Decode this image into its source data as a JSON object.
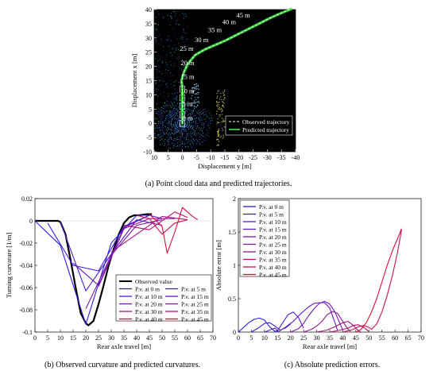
{
  "figure": {
    "caption_a": "(a) Point cloud data and predicted trajectories.",
    "caption_b": "(b) Observed curvature and predicted curvatures.",
    "caption_c": "(c) Absolute prediction errors."
  },
  "colors": {
    "observed": "#000000",
    "observed_traj": "#ffffff",
    "predicted_traj": "#36d23a",
    "map_bg": "#000000",
    "pv": [
      "#2a1ee0",
      "#3a1ed6",
      "#4e1ccb",
      "#6418be",
      "#7a16ad",
      "#8e149a",
      "#a21284",
      "#b5106c",
      "#c80e52",
      "#d90c3a"
    ]
  },
  "chart_data": [
    {
      "id": "a",
      "type": "scatter",
      "description_role": "point-cloud map with trajectories",
      "xlabel": "Displacement y [m]",
      "ylabel": "Displacement x [m]",
      "xlim": [
        10,
        -40
      ],
      "ylim": [
        -10,
        40
      ],
      "xticks": [
        10,
        5,
        0,
        -5,
        -10,
        -15,
        -20,
        -25,
        -30,
        -35,
        -40
      ],
      "yticks": [
        -10,
        -5,
        0,
        5,
        10,
        15,
        20,
        25,
        30,
        35,
        40
      ],
      "grid": false,
      "legend_position": "bottom-right",
      "series": [
        {
          "name": "Observed trajectory",
          "style": "dashed",
          "points": [
            [
              0,
              0
            ],
            [
              0,
              3
            ],
            [
              0,
              6
            ],
            [
              0,
              9
            ],
            [
              0,
              12
            ],
            [
              0.3,
              15
            ],
            [
              -0.5,
              18
            ],
            [
              -2,
              21
            ],
            [
              -4.5,
              24
            ],
            [
              -8,
              26
            ],
            [
              -11,
              27.3
            ],
            [
              -15,
              29
            ],
            [
              -19,
              31
            ],
            [
              -23,
              33
            ],
            [
              -27,
              35
            ],
            [
              -31,
              37
            ],
            [
              -35,
              38.8
            ],
            [
              -40,
              41
            ]
          ]
        },
        {
          "name": "Predicted trajectory",
          "style": "solid",
          "points": [
            [
              0,
              0
            ],
            [
              0,
              3
            ],
            [
              0,
              6
            ],
            [
              0,
              9
            ],
            [
              0,
              12
            ],
            [
              0.3,
              15
            ],
            [
              -0.5,
              18
            ],
            [
              -2,
              21
            ],
            [
              -4.5,
              24
            ],
            [
              -8,
              26
            ],
            [
              -11,
              27.3
            ],
            [
              -15,
              29
            ],
            [
              -19,
              31
            ],
            [
              -23,
              33
            ],
            [
              -27,
              35
            ],
            [
              -31,
              37
            ],
            [
              -35,
              38.8
            ],
            [
              -38.5,
              40.2
            ]
          ]
        }
      ],
      "annotations": [
        {
          "text": "0 m",
          "y": 1,
          "x": -1.8
        },
        {
          "text": "5 m",
          "y": 6,
          "x": -1.8
        },
        {
          "text": "10 m",
          "y": 10.5,
          "x": -1.8
        },
        {
          "text": "15 m",
          "y": 15.5,
          "x": -1.8
        },
        {
          "text": "20 m",
          "y": 20.5,
          "x": -1.8
        },
        {
          "text": "25 m",
          "y": 25.5,
          "x": -1.5
        },
        {
          "text": "30 m",
          "y": 28.5,
          "x": -6.8
        },
        {
          "text": "35 m",
          "y": 32,
          "x": -11.5
        },
        {
          "text": "40 m",
          "y": 34.8,
          "x": -16.5
        },
        {
          "text": "45 m",
          "y": 37.2,
          "x": -21.5
        }
      ]
    },
    {
      "id": "b",
      "type": "line",
      "xlabel": "Rear axle travel [m]",
      "ylabel": "Turning curvature [1/m]",
      "xlim": [
        0,
        70
      ],
      "ylim": [
        -0.1,
        0.02
      ],
      "xticks": [
        0,
        5,
        10,
        15,
        20,
        25,
        30,
        35,
        40,
        45,
        50,
        55,
        60,
        65,
        70
      ],
      "yticks": [
        -0.1,
        -0.08,
        -0.06,
        -0.04,
        -0.02,
        0,
        0.02
      ],
      "grid": false,
      "legend_position": "bottom-right",
      "series": [
        {
          "name": "Observed value",
          "points": [
            [
              0,
              0
            ],
            [
              5,
              0
            ],
            [
              9,
              0
            ],
            [
              10,
              -0.001
            ],
            [
              12,
              -0.012
            ],
            [
              14,
              -0.035
            ],
            [
              16,
              -0.06
            ],
            [
              18,
              -0.083
            ],
            [
              20,
              -0.092
            ],
            [
              21,
              -0.094
            ],
            [
              23,
              -0.09
            ],
            [
              25,
              -0.075
            ],
            [
              27,
              -0.058
            ],
            [
              29,
              -0.04
            ],
            [
              31,
              -0.025
            ],
            [
              33,
              -0.012
            ],
            [
              35,
              -0.002
            ],
            [
              37,
              0.003
            ],
            [
              39,
              0.005
            ],
            [
              41,
              0.005
            ],
            [
              44,
              0.006
            ],
            [
              46,
              0.006
            ]
          ]
        },
        {
          "name": "P.v. at 0 m",
          "points": [
            [
              0,
              0
            ],
            [
              10,
              -0.022
            ],
            [
              20,
              -0.093
            ],
            [
              30,
              -0.02
            ],
            [
              40,
              0.005
            ],
            [
              45,
              0.005
            ]
          ]
        },
        {
          "name": "P.v. at 5 m",
          "points": [
            [
              5,
              -0.002
            ],
            [
              15,
              -0.04
            ],
            [
              25,
              -0.045
            ],
            [
              35,
              -0.005
            ],
            [
              45,
              0.005
            ]
          ]
        },
        {
          "name": "P.v. at 10 m",
          "points": [
            [
              10,
              -0.001
            ],
            [
              20,
              -0.063
            ],
            [
              30,
              -0.03
            ],
            [
              40,
              0.001
            ],
            [
              50,
              -0.004
            ]
          ]
        },
        {
          "name": "P.v. at 15 m",
          "points": [
            [
              15,
              -0.038
            ],
            [
              25,
              -0.058
            ],
            [
              35,
              -0.006
            ],
            [
              45,
              0.005
            ],
            [
              50,
              0.002
            ]
          ]
        },
        {
          "name": "P.v. at 20 m",
          "points": [
            [
              20,
              -0.079
            ],
            [
              30,
              -0.031
            ],
            [
              40,
              -0.004
            ],
            [
              50,
              0.001
            ]
          ]
        },
        {
          "name": "P.v. at 25 m",
          "points": [
            [
              25,
              -0.059
            ],
            [
              35,
              -0.007
            ],
            [
              45,
              0.002
            ],
            [
              55,
              0.002
            ]
          ]
        },
        {
          "name": "P.v. at 30 m",
          "points": [
            [
              30,
              -0.028
            ],
            [
              40,
              -0.012
            ],
            [
              50,
              0.004
            ],
            [
              60,
              0.001
            ]
          ]
        },
        {
          "name": "P.v. at 35 m",
          "points": [
            [
              35,
              -0.004
            ],
            [
              45,
              -0.008
            ],
            [
              55,
              0.008
            ],
            [
              60,
              0.003
            ]
          ]
        },
        {
          "name": "P.v. at 40 m",
          "points": [
            [
              40,
              0.005
            ],
            [
              45,
              0.002
            ],
            [
              50,
              -0.012
            ],
            [
              55,
              -0.002
            ],
            [
              60,
              0.001
            ]
          ]
        },
        {
          "name": "P.v. at 45 m",
          "points": [
            [
              45,
              0.006
            ],
            [
              50,
              -0.005
            ],
            [
              52,
              -0.029
            ],
            [
              55,
              -0.01
            ],
            [
              58,
              0.012
            ],
            [
              62,
              0.004
            ],
            [
              64,
              0.001
            ]
          ]
        }
      ]
    },
    {
      "id": "c",
      "type": "line",
      "xlabel": "Rear axle travel [m]",
      "ylabel": "Absolute error [m]",
      "xlim": [
        0,
        70
      ],
      "ylim": [
        0,
        2
      ],
      "xticks": [
        0,
        5,
        10,
        15,
        20,
        25,
        30,
        35,
        40,
        45,
        50,
        55,
        60,
        65,
        70
      ],
      "yticks": [
        0,
        0.5,
        1,
        1.5,
        2
      ],
      "grid": false,
      "legend_position": "top-left",
      "series": [
        {
          "name": "P.v. at 0 m",
          "points": [
            [
              0,
              0
            ],
            [
              2,
              0.07
            ],
            [
              4,
              0.14
            ],
            [
              6,
              0.19
            ],
            [
              8,
              0.21
            ],
            [
              10,
              0.18
            ],
            [
              12,
              0.08
            ],
            [
              14,
              0.01
            ],
            [
              15,
              0.02
            ]
          ]
        },
        {
          "name": "P.v. at 5 m",
          "points": [
            [
              5,
              0
            ],
            [
              8,
              0.07
            ],
            [
              10,
              0.13
            ],
            [
              12,
              0.14
            ],
            [
              14,
              0.09
            ],
            [
              16,
              0.03
            ],
            [
              18,
              0.06
            ],
            [
              20,
              0.12
            ]
          ]
        },
        {
          "name": "P.v. at 10 m",
          "points": [
            [
              10,
              0
            ],
            [
              12,
              0.03
            ],
            [
              14,
              0.06
            ],
            [
              15,
              0.02
            ],
            [
              17,
              0.14
            ],
            [
              19,
              0.26
            ],
            [
              21,
              0.3
            ],
            [
              23,
              0.22
            ],
            [
              25,
              0.06
            ]
          ]
        },
        {
          "name": "P.v. at 15 m",
          "points": [
            [
              15,
              0
            ],
            [
              18,
              0.07
            ],
            [
              21,
              0.16
            ],
            [
              24,
              0.28
            ],
            [
              27,
              0.38
            ],
            [
              29,
              0.43
            ],
            [
              31,
              0.44
            ],
            [
              33,
              0.44
            ],
            [
              35,
              0.36
            ],
            [
              37,
              0.14
            ],
            [
              38,
              0.02
            ]
          ]
        },
        {
          "name": "P.v. at 20 m",
          "points": [
            [
              20,
              0
            ],
            [
              23,
              0.05
            ],
            [
              25,
              0.13
            ],
            [
              27,
              0.25
            ],
            [
              29,
              0.35
            ],
            [
              31,
              0.43
            ],
            [
              33,
              0.46
            ],
            [
              35,
              0.42
            ],
            [
              37,
              0.3
            ],
            [
              39,
              0.12
            ],
            [
              40,
              0.03
            ]
          ]
        },
        {
          "name": "P.v. at 25 m",
          "points": [
            [
              25,
              0
            ],
            [
              28,
              0.04
            ],
            [
              30,
              0.09
            ],
            [
              32,
              0.16
            ],
            [
              34,
              0.26
            ],
            [
              36,
              0.31
            ],
            [
              38,
              0.28
            ],
            [
              40,
              0.16
            ],
            [
              42,
              0.04
            ],
            [
              43,
              0.01
            ]
          ]
        },
        {
          "name": "P.v. at 30 m",
          "points": [
            [
              30,
              0
            ],
            [
              34,
              0.03
            ],
            [
              37,
              0.08
            ],
            [
              40,
              0.14
            ],
            [
              42,
              0.16
            ],
            [
              44,
              0.1
            ],
            [
              46,
              0.02
            ],
            [
              47,
              0
            ]
          ]
        },
        {
          "name": "P.v. at 35 m",
          "points": [
            [
              35,
              0
            ],
            [
              39,
              0.03
            ],
            [
              42,
              0.06
            ],
            [
              44,
              0.1
            ],
            [
              46,
              0.11
            ],
            [
              48,
              0.07
            ],
            [
              50,
              0.01
            ]
          ]
        },
        {
          "name": "P.v. at 40 m",
          "points": [
            [
              40,
              0
            ],
            [
              44,
              0.04
            ],
            [
              46,
              0.08
            ],
            [
              48,
              0.1
            ],
            [
              50,
              0.07
            ],
            [
              51,
              0.04
            ],
            [
              53,
              0.12
            ],
            [
              55,
              0.3
            ],
            [
              57,
              0.55
            ],
            [
              59,
              0.85
            ],
            [
              61,
              1.2
            ],
            [
              62.5,
              1.53
            ]
          ]
        },
        {
          "name": "P.v. at 45 m",
          "points": [
            [
              45,
              0
            ],
            [
              47,
              0.04
            ],
            [
              49,
              0.14
            ],
            [
              51,
              0.3
            ],
            [
              53,
              0.5
            ],
            [
              55,
              0.75
            ],
            [
              57,
              1.0
            ],
            [
              59,
              1.22
            ],
            [
              61,
              1.4
            ],
            [
              62.5,
              1.55
            ]
          ]
        }
      ]
    }
  ]
}
